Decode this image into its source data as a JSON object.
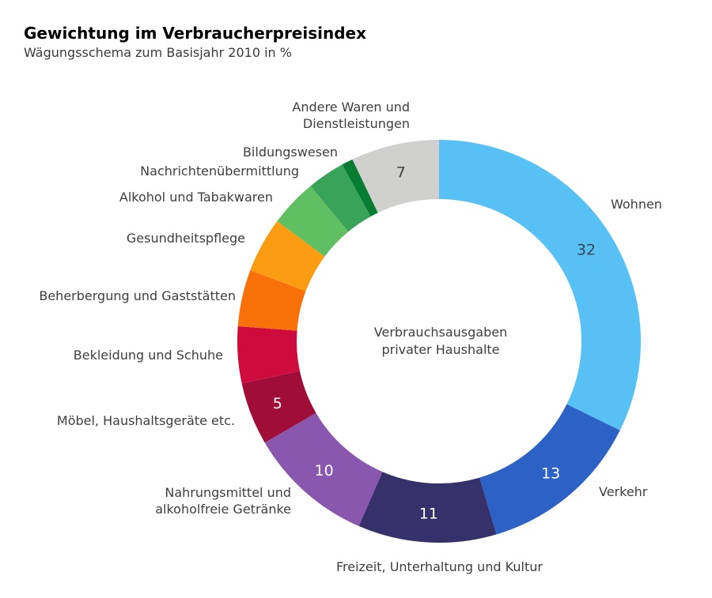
{
  "header": {
    "title": "Gewichtung im Verbraucherpreisindex",
    "subtitle": "Wägungsschema zum Basisjahr 2010 in %"
  },
  "chart_data": {
    "type": "pie",
    "variant": "donut",
    "title": "Gewichtung im Verbraucherpreisindex",
    "subtitle": "Wägungsschema zum Basisjahr 2010 in %",
    "unit": "%",
    "center_label": "Verbrauchsausgaben\nprivater Haushalte",
    "start_angle_deg": 0,
    "direction": "clockwise",
    "legend_position": "outside-labels",
    "segments": [
      {
        "label": "Wohnen",
        "value": 32,
        "value_label": "32",
        "color": "#57C1F5",
        "value_label_color": "#3B4557"
      },
      {
        "label": "Verkehr",
        "value": 13,
        "value_label": "13",
        "color": "#2C62C6",
        "value_label_color": "#FFFFFF"
      },
      {
        "label": "Freizeit, Unterhaltung und Kultur",
        "value": 11,
        "value_label": "11",
        "color": "#36316B",
        "value_label_color": "#FFFFFF"
      },
      {
        "label": "Nahrungsmittel und\nalkoholfreie Getränke",
        "value": 10,
        "value_label": "10",
        "color": "#8957AD",
        "value_label_color": "#FFFFFF"
      },
      {
        "label": "Möbel, Haushaltsgeräte etc.",
        "value": 5,
        "value_label": "5",
        "color": "#A00D39",
        "value_label_color": "#FFFFFF"
      },
      {
        "label": "Bekleidung und Schuhe",
        "value": 4.5,
        "value_label": "",
        "color": "#CE0B3D",
        "value_label_color": "#FFFFFF"
      },
      {
        "label": "Beherbergung und Gaststätten",
        "value": 4.5,
        "value_label": "",
        "color": "#F9700B",
        "value_label_color": "#FFFFFF"
      },
      {
        "label": "Gesundheitspflege",
        "value": 4.4,
        "value_label": "",
        "color": "#FB9C13",
        "value_label_color": "#FFFFFF"
      },
      {
        "label": "Alkohol und Tabakwaren",
        "value": 3.8,
        "value_label": "",
        "color": "#5FBF61",
        "value_label_color": "#FFFFFF"
      },
      {
        "label": "Nachrichtenübermittlung",
        "value": 3.0,
        "value_label": "",
        "color": "#3AA35A",
        "value_label_color": "#FFFFFF"
      },
      {
        "label": "Bildungswesen",
        "value": 0.9,
        "value_label": "",
        "color": "#077D33",
        "value_label_color": "#FFFFFF"
      },
      {
        "label": "Andere Waren und\nDienstleistungen",
        "value": 7.0,
        "value_label": "7",
        "color": "#D0D0CF",
        "value_label_color": "#3F3F3F"
      }
    ]
  }
}
